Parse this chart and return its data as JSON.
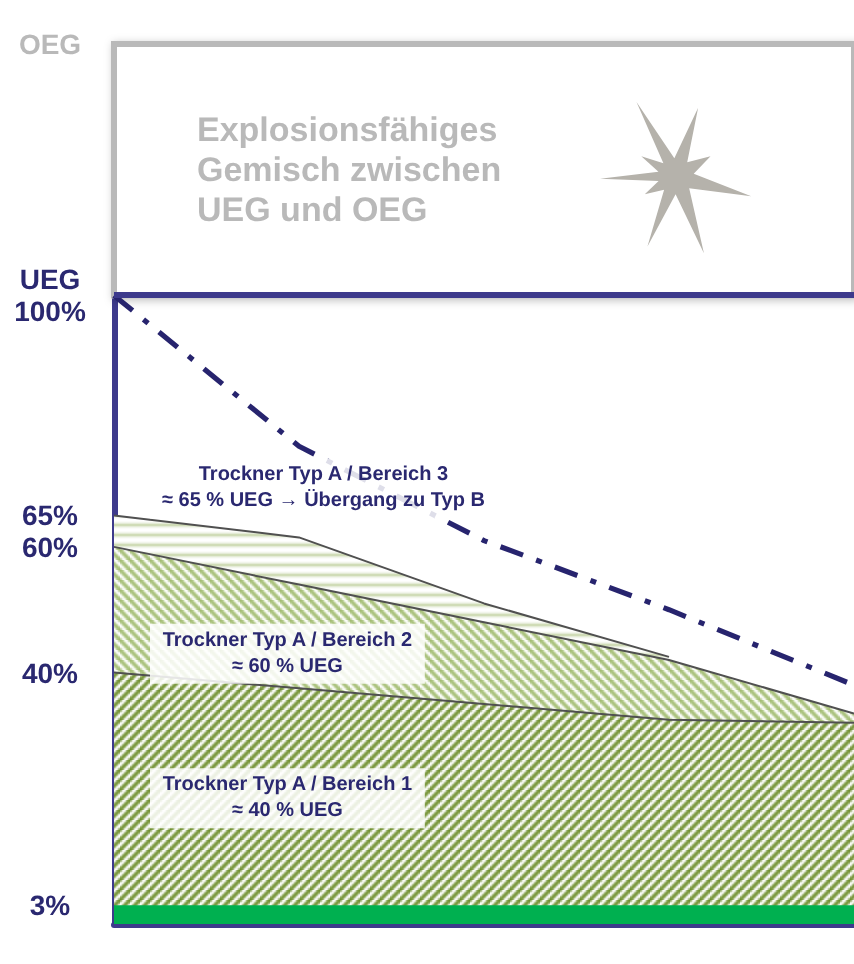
{
  "chart_data": {
    "type": "area",
    "categories": [
      null,
      null,
      null,
      null,
      null
    ],
    "stacked": true,
    "series": [
      {
        "color": "#6f8f2e",
        "values": [
          40,
          37.5,
          35,
          32.5,
          32
        ]
      },
      {
        "color": "#a3bd72",
        "values": [
          20,
          16.5,
          13,
          9.5,
          1.5
        ]
      },
      {
        "color": "#c6d4a8",
        "values": [
          5,
          7.5,
          3,
          0.5,
          null
        ]
      },
      {
        "type": "line",
        "color": "#27246e",
        "line_style": "dashed",
        "values": [
          100,
          76,
          61,
          50,
          38
        ]
      }
    ],
    "ylim": [
      0,
      140
    ],
    "yticks": [
      {
        "value": 3,
        "label": "3%"
      },
      {
        "value": 40,
        "label": "40%"
      },
      {
        "value": 60,
        "label": "60%"
      },
      {
        "value": 65,
        "label": "65%"
      },
      {
        "value": 100,
        "label": "UEG\n100%"
      },
      {
        "value": 140,
        "label": "OEG"
      }
    ],
    "tick_labels": "y",
    "grid": false,
    "marker": "none",
    "ref_lines": [
      {
        "axis": "y",
        "value": 100,
        "color": "#3d3a8c"
      }
    ],
    "bands": [
      {
        "axis": "y",
        "from": 100,
        "to": 140,
        "label": "Explosionsfähiges\nGemisch zwischen\nUEG und OEG",
        "color": "#b9b9b9"
      },
      {
        "axis": "y",
        "from": 0,
        "to": 3,
        "color": "#00b050"
      }
    ],
    "annotations": [
      "Trockner Typ A / Bereich 3\n≈ 65 % UEG → Übergang zu Typ B",
      "Trockner Typ A / Bereich 2\n≈ 60 % UEG",
      "Trockner Typ A / Bereich 1\n≈ 40 % UEG"
    ]
  }
}
